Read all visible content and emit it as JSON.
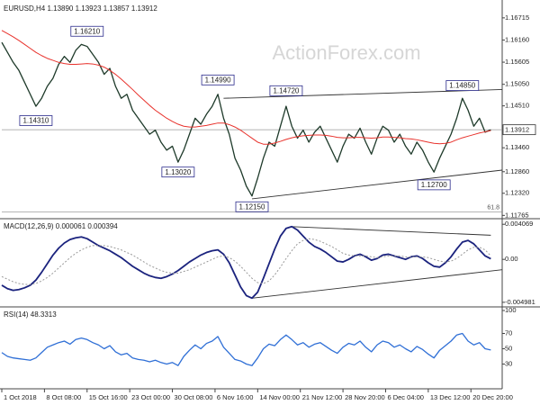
{
  "chart_data": [
    {
      "type": "line",
      "title": "EURUSD,H4  1.13890 1.13923 1.13857 1.13912",
      "watermark": "ActionForex.com",
      "xlim": [
        0,
        88
      ],
      "ylim": [
        1.1175,
        1.1705
      ],
      "yticks": [
        1.16715,
        {
          "value": 1.1616,
          "label": "1.16160"
        },
        1.15605,
        {
          "value": 1.1505,
          "label": "1.15050"
        },
        {
          "value": 1.1451,
          "label": "1.14510"
        },
        {
          "value": 1.1346,
          "label": "1.13460"
        },
        {
          "value": 1.1286,
          "label": "1.12860"
        },
        {
          "value": 1.1232,
          "label": "1.12320"
        },
        1.11765
      ],
      "last_price": 1.13912,
      "series": [
        {
          "color": "#1e3a2a",
          "values": [
            1.161,
            1.1585,
            1.156,
            1.154,
            1.151,
            1.148,
            1.145,
            1.147,
            1.15,
            1.152,
            1.1555,
            1.1575,
            1.156,
            1.159,
            1.1605,
            1.16,
            1.158,
            1.156,
            1.153,
            1.1545,
            1.15,
            1.147,
            1.148,
            1.144,
            1.142,
            1.14,
            1.138,
            1.139,
            1.136,
            1.134,
            1.135,
            1.131,
            1.134,
            1.138,
            1.142,
            1.1405,
            1.143,
            1.145,
            1.148,
            1.142,
            1.138,
            1.132,
            1.129,
            1.125,
            1.1225,
            1.127,
            1.132,
            1.136,
            1.135,
            1.14,
            1.145,
            1.14,
            1.137,
            1.139,
            1.136,
            1.1385,
            1.14,
            1.137,
            1.134,
            1.131,
            1.135,
            1.138,
            1.137,
            1.1395,
            1.136,
            1.133,
            1.137,
            1.14,
            1.139,
            1.136,
            1.138,
            1.135,
            1.133,
            1.136,
            1.134,
            1.131,
            1.1285,
            1.132,
            1.135,
            1.138,
            1.142,
            1.147,
            1.144,
            1.14,
            1.142,
            1.1385,
            1.1391
          ]
        },
        {
          "color": "#e8322c",
          "values": [
            1.164,
            1.1632,
            1.1624,
            1.1615,
            1.1605,
            1.1595,
            1.1585,
            1.1577,
            1.157,
            1.1565,
            1.156,
            1.1557,
            1.1555,
            1.1555,
            1.1556,
            1.1557,
            1.1556,
            1.1553,
            1.1548,
            1.154,
            1.153,
            1.1518,
            1.1505,
            1.1492,
            1.1478,
            1.1465,
            1.1452,
            1.144,
            1.143,
            1.142,
            1.1412,
            1.1405,
            1.14,
            1.1398,
            1.1398,
            1.14,
            1.1402,
            1.1405,
            1.1408,
            1.1408,
            1.1404,
            1.1398,
            1.139,
            1.138,
            1.137,
            1.136,
            1.1355,
            1.1355,
            1.1358,
            1.1362,
            1.1367,
            1.1371,
            1.1374,
            1.1376,
            1.1377,
            1.1378,
            1.1378,
            1.1377,
            1.1375,
            1.1372,
            1.1371,
            1.1371,
            1.1372,
            1.1372,
            1.1371,
            1.137,
            1.1371,
            1.1373,
            1.1373,
            1.1372,
            1.1371,
            1.1369,
            1.1368,
            1.1366,
            1.1363,
            1.136,
            1.1357,
            1.1356,
            1.1357,
            1.136,
            1.1366,
            1.1371,
            1.1375,
            1.1379,
            1.1383,
            1.1386,
            1.1389
          ]
        }
      ],
      "annotations": [
        {
          "text": "1.16210",
          "x": 15,
          "y": 1.1621,
          "position": "above"
        },
        {
          "text": "1.14310",
          "x": 6,
          "y": 1.1431,
          "position": "below"
        },
        {
          "text": "1.14990",
          "x": 38,
          "y": 1.1499,
          "position": "above"
        },
        {
          "text": "1.13020",
          "x": 31,
          "y": 1.1302,
          "position": "below"
        },
        {
          "text": "1.14720",
          "x": 50,
          "y": 1.1472,
          "position": "above"
        },
        {
          "text": "1.12150",
          "x": 44,
          "y": 1.1215,
          "position": "below"
        },
        {
          "text": "1.14850",
          "x": 81,
          "y": 1.1485,
          "position": "above"
        },
        {
          "text": "1.12700",
          "x": 76,
          "y": 1.127,
          "position": "below"
        }
      ],
      "trendlines": [
        {
          "x": [
            39,
            88
          ],
          "y": [
            1.147,
            1.1492
          ]
        },
        {
          "x": [
            44,
            88
          ],
          "y": [
            1.1218,
            1.129
          ]
        }
      ],
      "fib_level": {
        "label": "61.8",
        "value": 1.1185
      }
    },
    {
      "type": "line",
      "title": "MACD(12,26,9) 0.000061 0.000394",
      "xlim": [
        0,
        88
      ],
      "ylim": [
        -0.0052,
        0.0043
      ],
      "yticks": [
        0.004069,
        {
          "value": 0,
          "label": "0.00"
        },
        -0.004981
      ],
      "series": [
        {
          "color": "#1b237e",
          "values": [
            -0.003,
            -0.0034,
            -0.0036,
            -0.0035,
            -0.0033,
            -0.003,
            -0.0024,
            -0.0015,
            -0.0005,
            0.0005,
            0.0013,
            0.0019,
            0.0023,
            0.0025,
            0.0026,
            0.0024,
            0.002,
            0.0016,
            0.0013,
            0.001,
            0.0006,
            0.0002,
            -0.0003,
            -0.0008,
            -0.0012,
            -0.0016,
            -0.0019,
            -0.0021,
            -0.0022,
            -0.002,
            -0.0017,
            -0.0013,
            -0.0008,
            -0.0003,
            0.0001,
            0.0005,
            0.0008,
            0.001,
            0.0011,
            0.0006,
            -0.0004,
            -0.0018,
            -0.0032,
            -0.0042,
            -0.0045,
            -0.0038,
            -0.0022,
            -0.0005,
            0.0012,
            0.0027,
            0.0036,
            0.0038,
            0.0034,
            0.0027,
            0.002,
            0.0015,
            0.0012,
            0.0008,
            0.0003,
            -0.0002,
            -0.0003,
            0.0,
            0.0004,
            0.0006,
            0.0003,
            -0.0001,
            0.0001,
            0.0005,
            0.0006,
            0.0004,
            0.0002,
            0.0,
            0.0003,
            0.0004,
            0.0001,
            -0.0004,
            -0.0008,
            -0.0009,
            -0.0004,
            0.0003,
            0.0012,
            0.002,
            0.0022,
            0.0018,
            0.0011,
            0.0004,
            6.1e-05
          ]
        },
        {
          "color": "#999999",
          "values": [
            -0.002,
            -0.0023,
            -0.0026,
            -0.0028,
            -0.0029,
            -0.0029,
            -0.0028,
            -0.0025,
            -0.0021,
            -0.0016,
            -0.001,
            -0.0004,
            0.0002,
            0.0007,
            0.0011,
            0.0014,
            0.0016,
            0.0016,
            0.0016,
            0.0015,
            0.0013,
            0.0011,
            0.0008,
            0.0005,
            0.0001,
            -0.0003,
            -0.0007,
            -0.001,
            -0.0013,
            -0.0015,
            -0.0016,
            -0.0016,
            -0.0014,
            -0.0012,
            -0.0009,
            -0.0006,
            -0.0003,
            0.0,
            0.0003,
            0.0004,
            0.0002,
            -0.0002,
            -0.0008,
            -0.0015,
            -0.0022,
            -0.0027,
            -0.0028,
            -0.0025,
            -0.0018,
            -0.0009,
            0.0001,
            0.001,
            0.0018,
            0.0022,
            0.0024,
            0.0023,
            0.0021,
            0.0018,
            0.0015,
            0.0011,
            0.0007,
            0.0005,
            0.0004,
            0.0004,
            0.0004,
            0.0003,
            0.0002,
            0.0003,
            0.0004,
            0.0004,
            0.0004,
            0.0003,
            0.0003,
            0.0003,
            0.0003,
            0.0002,
            0.0,
            -0.0002,
            -0.0003,
            -0.0002,
            0.0001,
            0.0006,
            0.0011,
            0.0014,
            0.0014,
            0.0011,
            0.000394
          ]
        }
      ],
      "trendlines": [
        {
          "x": [
            51,
            86
          ],
          "y": [
            0.0038,
            0.0028
          ]
        },
        {
          "x": [
            44,
            88
          ],
          "y": [
            -0.0045,
            -0.0012
          ]
        }
      ]
    },
    {
      "type": "line",
      "title": "RSI(14) 48.3313",
      "xlim": [
        0,
        88
      ],
      "ylim": [
        0,
        100
      ],
      "yticks": [
        30,
        50,
        70,
        100
      ],
      "xticks": [
        {
          "value": 0,
          "label": "1 Oct 2018"
        },
        {
          "value": 7.5,
          "label": "8 Oct 08:00"
        },
        {
          "value": 15,
          "label": "15 Oct 16:00"
        },
        {
          "value": 22.5,
          "label": "23 Oct 00:00"
        },
        {
          "value": 30,
          "label": "30 Oct 08:00"
        },
        {
          "value": 37.5,
          "label": "6 Nov 16:00"
        },
        {
          "value": 45,
          "label": "14 Nov 00:00"
        },
        {
          "value": 52.5,
          "label": "21 Nov 12:00"
        },
        {
          "value": 60,
          "label": "28 Nov 20:00"
        },
        {
          "value": 67.5,
          "label": "6 Dec 04:00"
        },
        {
          "value": 75,
          "label": "13 Dec 12:00"
        },
        {
          "value": 82.5,
          "label": "20 Dec 20:00"
        }
      ],
      "series": [
        {
          "color": "#2f6fd6",
          "values": [
            45,
            40,
            38,
            37,
            36,
            35,
            38,
            45,
            52,
            55,
            58,
            60,
            56,
            62,
            64,
            62,
            58,
            55,
            50,
            54,
            46,
            42,
            44,
            38,
            36,
            35,
            33,
            35,
            32,
            30,
            32,
            28,
            40,
            48,
            55,
            50,
            57,
            60,
            66,
            52,
            44,
            36,
            34,
            30,
            28,
            38,
            50,
            56,
            54,
            62,
            68,
            62,
            55,
            58,
            52,
            56,
            58,
            53,
            48,
            44,
            52,
            57,
            55,
            60,
            52,
            46,
            55,
            60,
            58,
            52,
            55,
            50,
            46,
            53,
            49,
            43,
            38,
            48,
            54,
            60,
            68,
            70,
            60,
            55,
            58,
            50,
            48.3313
          ]
        }
      ]
    }
  ]
}
